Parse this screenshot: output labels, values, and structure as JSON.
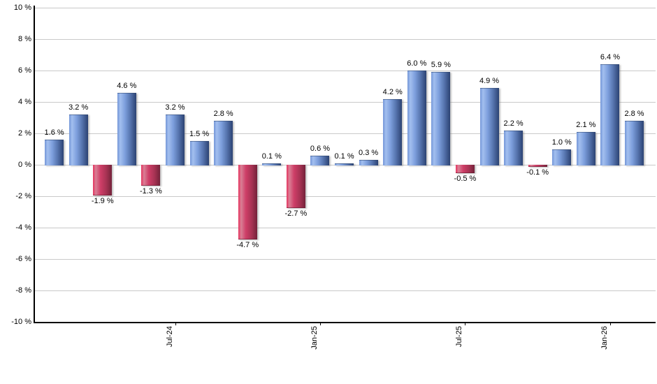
{
  "chart": {
    "background_color": "#ffffff",
    "grid_color": "#c9c9c9",
    "axis_color": "#000000",
    "text_color": "#000000"
  },
  "chart_data": {
    "type": "bar",
    "title": "",
    "xlabel": "",
    "ylabel": "",
    "ylim": [
      -10,
      10
    ],
    "grid": true,
    "values": [
      1.6,
      3.2,
      -1.9,
      4.6,
      -1.3,
      3.2,
      1.5,
      2.8,
      -4.7,
      0.1,
      -2.7,
      0.6,
      0.1,
      0.3,
      4.2,
      6.0,
      5.9,
      -0.5,
      4.9,
      2.2,
      -0.1,
      1.0,
      2.1,
      6.4,
      2.8
    ],
    "value_labels": [
      "1.6 %",
      "3.2 %",
      "-1.9 %",
      "4.6 %",
      "-1.3 %",
      "3.2 %",
      "1.5 %",
      "2.8 %",
      "-4.7 %",
      "0.1 %",
      "-2.7 %",
      "0.6 %",
      "0.1 %",
      "0.3 %",
      "4.2 %",
      "6.0 %",
      "5.9 %",
      "-0.5 %",
      "4.9 %",
      "2.2 %",
      "-0.1 %",
      "1.0 %",
      "2.1 %",
      "6.4 %",
      "2.8 %"
    ],
    "x_ticks": [
      {
        "bar_index": 5,
        "label": "Jul-24"
      },
      {
        "bar_index": 11,
        "label": "Jan-25"
      },
      {
        "bar_index": 17,
        "label": "Jul-25"
      },
      {
        "bar_index": 23,
        "label": "Jan-26"
      }
    ],
    "y_ticks": [
      {
        "value": 10,
        "label": "10 %"
      },
      {
        "value": 8,
        "label": "8 %"
      },
      {
        "value": 6,
        "label": "6 %"
      },
      {
        "value": 4,
        "label": "4 %"
      },
      {
        "value": 2,
        "label": "2 %"
      },
      {
        "value": 0,
        "label": "0 %"
      },
      {
        "value": -2,
        "label": "-2 %"
      },
      {
        "value": -4,
        "label": "-4 %"
      },
      {
        "value": -6,
        "label": "-6 %"
      },
      {
        "value": -8,
        "label": "-8 %"
      },
      {
        "value": -10,
        "label": "-10 %"
      }
    ],
    "positive_bar_gradient": [
      "#7396d8",
      "#a3bfef",
      "#7d9fdd",
      "#5472ab",
      "#2b4273"
    ],
    "negative_bar_gradient": [
      "#e5335f",
      "#d97f95",
      "#ce3e67",
      "#a83354",
      "#74223a"
    ],
    "legend": null
  }
}
